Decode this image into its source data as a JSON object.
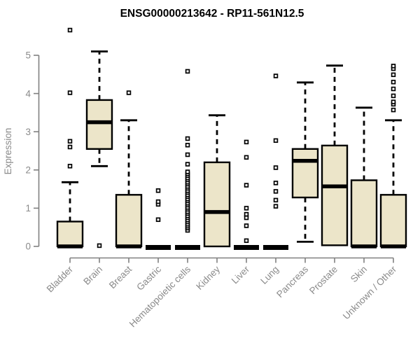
{
  "page": {
    "background": "#ffffff"
  },
  "chart_data": {
    "type": "boxplot",
    "title": "ENSG00000213642 - RP11-561N12.5",
    "ylabel": "Expression",
    "xlabel": "",
    "ylim": [
      0,
      5
    ],
    "yticks": [
      0,
      1,
      2,
      3,
      4,
      5
    ],
    "grid": false,
    "legend": false,
    "categories": [
      "Bladder",
      "Brain",
      "Breast",
      "Gastric",
      "Hematopoietic cells",
      "Kidney",
      "Liver",
      "Lung",
      "Pancreas",
      "Prostate",
      "Skin",
      "Unknown / Other"
    ],
    "series": [
      {
        "name": "Bladder",
        "q1": 0,
        "median": 0,
        "q3": 0.65,
        "whisker_low": 0,
        "whisker_high": 1.68,
        "outliers": [
          2.1,
          2.6,
          2.75,
          4.02,
          5.66
        ]
      },
      {
        "name": "Brain",
        "q1": 2.55,
        "median": 3.25,
        "q3": 3.83,
        "whisker_low": 2.1,
        "whisker_high": 5.1,
        "outliers": [
          0.02
        ]
      },
      {
        "name": "Breast",
        "q1": 0,
        "median": 0,
        "q3": 1.35,
        "whisker_low": 0,
        "whisker_high": 3.3,
        "outliers": [
          4.02
        ]
      },
      {
        "name": "Gastric",
        "q1": 0,
        "median": 0,
        "q3": 0,
        "whisker_low": 0,
        "whisker_high": 0,
        "outliers": [
          0.7,
          1.1,
          1.17,
          1.46
        ]
      },
      {
        "name": "Hematopoietic cells",
        "q1": 0,
        "median": 0,
        "q3": 0,
        "whisker_low": 0,
        "whisker_high": 0,
        "outliers": [
          0.42,
          0.48,
          0.53,
          0.58,
          0.64,
          0.69,
          0.75,
          0.8,
          0.86,
          0.91,
          0.97,
          1.02,
          1.08,
          1.13,
          1.19,
          1.24,
          1.3,
          1.35,
          1.41,
          1.46,
          1.52,
          1.57,
          1.63,
          1.68,
          1.74,
          1.79,
          1.85,
          1.9,
          1.95,
          2.15,
          2.4,
          2.65,
          2.82,
          4.58
        ]
      },
      {
        "name": "Kidney",
        "q1": 0,
        "median": 0.9,
        "q3": 2.2,
        "whisker_low": 0,
        "whisker_high": 3.43,
        "outliers": []
      },
      {
        "name": "Liver",
        "q1": 0,
        "median": 0,
        "q3": 0,
        "whisker_low": 0,
        "whisker_high": 0,
        "outliers": [
          0.15,
          0.54,
          0.75,
          0.84,
          1.0,
          1.6,
          2.33,
          2.73
        ]
      },
      {
        "name": "Lung",
        "q1": 0,
        "median": 0,
        "q3": 0,
        "whisker_low": 0,
        "whisker_high": 0,
        "outliers": [
          1.05,
          1.21,
          1.44,
          1.66,
          2.06,
          2.77,
          4.46
        ]
      },
      {
        "name": "Pancreas",
        "q1": 1.28,
        "median": 2.24,
        "q3": 2.55,
        "whisker_low": 0.12,
        "whisker_high": 4.29,
        "outliers": []
      },
      {
        "name": "Prostate",
        "q1": 0.03,
        "median": 1.57,
        "q3": 2.64,
        "whisker_low": 0.03,
        "whisker_high": 4.73,
        "outliers": []
      },
      {
        "name": "Skin",
        "q1": 0,
        "median": 0,
        "q3": 1.73,
        "whisker_low": 0,
        "whisker_high": 3.63,
        "outliers": []
      },
      {
        "name": "Unknown / Other",
        "q1": 0,
        "median": 0,
        "q3": 1.35,
        "whisker_low": 0,
        "whisker_high": 3.3,
        "outliers": [
          3.57,
          3.72,
          3.78,
          3.94,
          4.12,
          4.3,
          4.49,
          4.65,
          4.72
        ]
      }
    ],
    "colors": {
      "box_fill": "#ece5c9",
      "box_stroke": "#000000",
      "median": "#000000",
      "whisker": "#000000",
      "outlier_fill": "#ffffff",
      "outlier_stroke": "#000000",
      "axis": "#808080",
      "text": "#8a8a8a",
      "title": "#000000",
      "background": "#ffffff"
    }
  }
}
